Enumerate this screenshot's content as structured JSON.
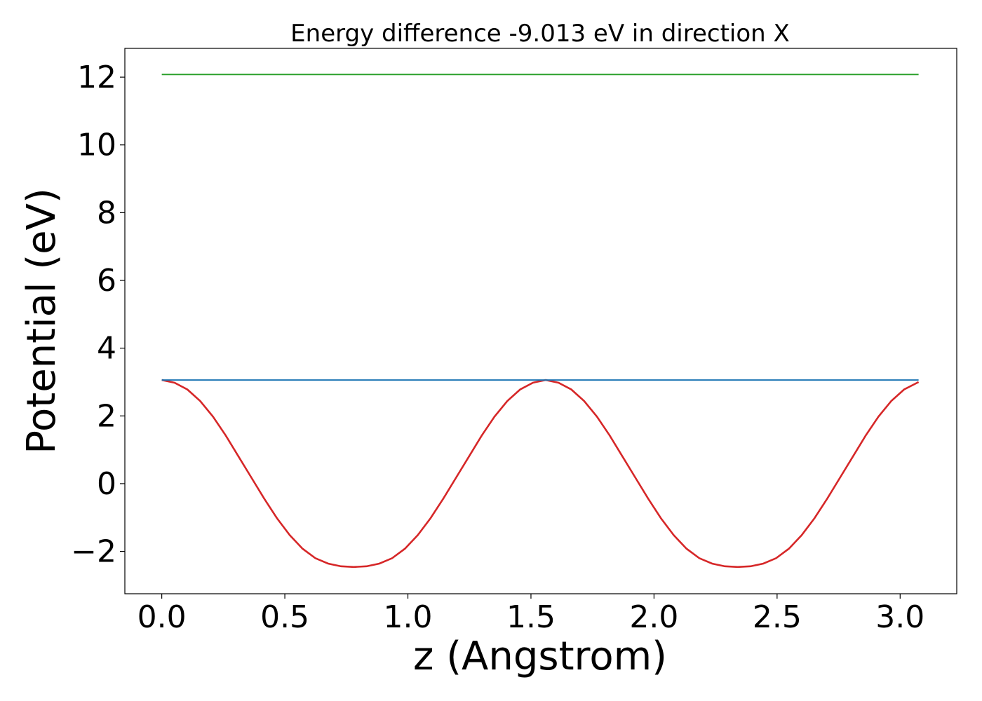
{
  "chart_data": {
    "type": "line",
    "title": "Energy difference -9.013 eV in direction X",
    "xlabel": "z (Angstrom)",
    "ylabel": "Potential (eV)",
    "xlim": [
      -0.15,
      3.23
    ],
    "ylim": [
      -3.25,
      12.85
    ],
    "xticks": [
      0.0,
      0.5,
      1.0,
      1.5,
      2.0,
      2.5,
      3.0
    ],
    "xtick_labels": [
      "0.0",
      "0.5",
      "1.0",
      "1.5",
      "2.0",
      "2.5",
      "3.0"
    ],
    "yticks": [
      -2,
      0,
      2,
      4,
      6,
      8,
      10,
      12
    ],
    "ytick_labels": [
      "−2",
      "0",
      "2",
      "4",
      "6",
      "8",
      "10",
      "12"
    ],
    "grid": false,
    "series": [
      {
        "color": "#d62728",
        "x": [
          0.0,
          0.052,
          0.104,
          0.156,
          0.208,
          0.26,
          0.312,
          0.364,
          0.416,
          0.468,
          0.52,
          0.572,
          0.624,
          0.676,
          0.728,
          0.78,
          0.832,
          0.884,
          0.936,
          0.988,
          1.04,
          1.092,
          1.144,
          1.196,
          1.248,
          1.3,
          1.352,
          1.404,
          1.456,
          1.508,
          1.56,
          1.612,
          1.664,
          1.716,
          1.768,
          1.82,
          1.872,
          1.924,
          1.976,
          2.028,
          2.08,
          2.132,
          2.184,
          2.236,
          2.288,
          2.34,
          2.392,
          2.444,
          2.496,
          2.548,
          2.6,
          2.652,
          2.704,
          2.756,
          2.808,
          2.86,
          2.912,
          2.964,
          3.016,
          3.075
        ],
        "y": [
          3.06,
          2.98,
          2.78,
          2.44,
          1.98,
          1.42,
          0.8,
          0.18,
          -0.44,
          -1.02,
          -1.52,
          -1.92,
          -2.2,
          -2.36,
          -2.44,
          -2.46,
          -2.44,
          -2.36,
          -2.2,
          -1.92,
          -1.52,
          -1.02,
          -0.44,
          0.18,
          0.8,
          1.42,
          1.98,
          2.44,
          2.78,
          2.98,
          3.06,
          2.98,
          2.78,
          2.44,
          1.98,
          1.42,
          0.8,
          0.18,
          -0.44,
          -1.02,
          -1.52,
          -1.92,
          -2.2,
          -2.36,
          -2.44,
          -2.46,
          -2.44,
          -2.36,
          -2.2,
          -1.92,
          -1.52,
          -1.02,
          -0.44,
          0.18,
          0.8,
          1.42,
          1.98,
          2.44,
          2.78,
          3.0
        ]
      },
      {
        "color": "#1f77b4",
        "x": [
          0.0,
          3.075
        ],
        "y": [
          3.06,
          3.06
        ]
      },
      {
        "color": "#2ca02c",
        "x": [
          0.0,
          3.075
        ],
        "y": [
          12.08,
          12.08
        ]
      }
    ]
  }
}
